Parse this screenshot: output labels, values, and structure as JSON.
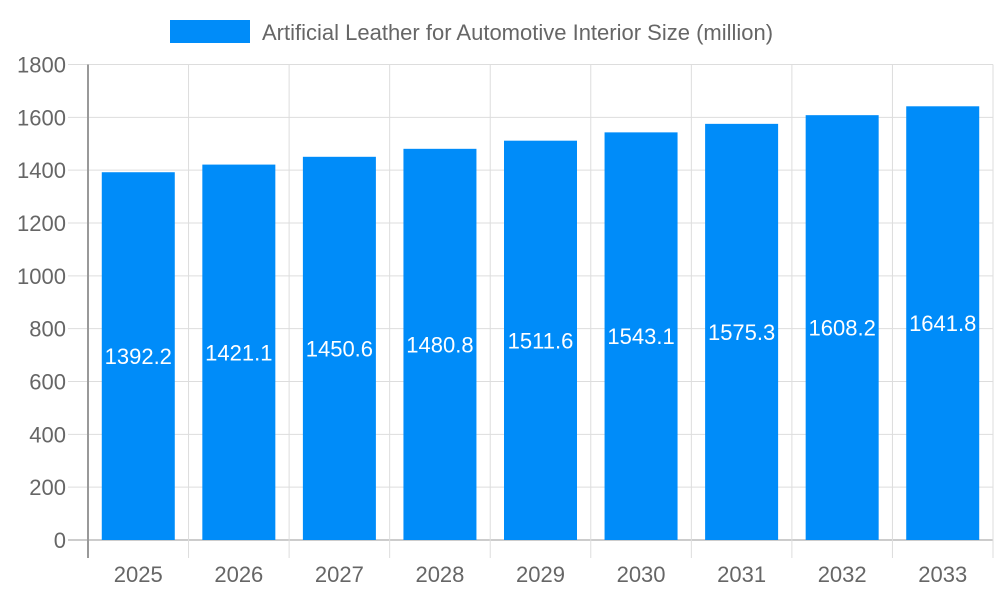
{
  "chart_data": {
    "type": "bar",
    "title": "",
    "xlabel": "",
    "ylabel": "",
    "categories": [
      "2025",
      "2026",
      "2027",
      "2028",
      "2029",
      "2030",
      "2031",
      "2032",
      "2033"
    ],
    "series": [
      {
        "name": "Artificial Leather for Automotive Interior Size (million)",
        "values": [
          1392.2,
          1421.1,
          1450.6,
          1480.8,
          1511.6,
          1543.1,
          1575.3,
          1608.2,
          1641.8
        ]
      }
    ],
    "data_labels": [
      "1392.2",
      "1421.1",
      "1450.6",
      "1480.8",
      "1511.6",
      "1543.1",
      "1575.3",
      "1608.2",
      "1641.8"
    ],
    "ylim": [
      0,
      1800
    ],
    "yticks": [
      "0",
      "200",
      "400",
      "600",
      "800",
      "1000",
      "1200",
      "1400",
      "1600",
      "1800"
    ],
    "grid": true,
    "legend_position": "top",
    "colors": {
      "bar": "#008cf9",
      "grid": "#dddddd",
      "axis": "#999999",
      "text": "#666666",
      "data_label": "#ffffff"
    }
  }
}
